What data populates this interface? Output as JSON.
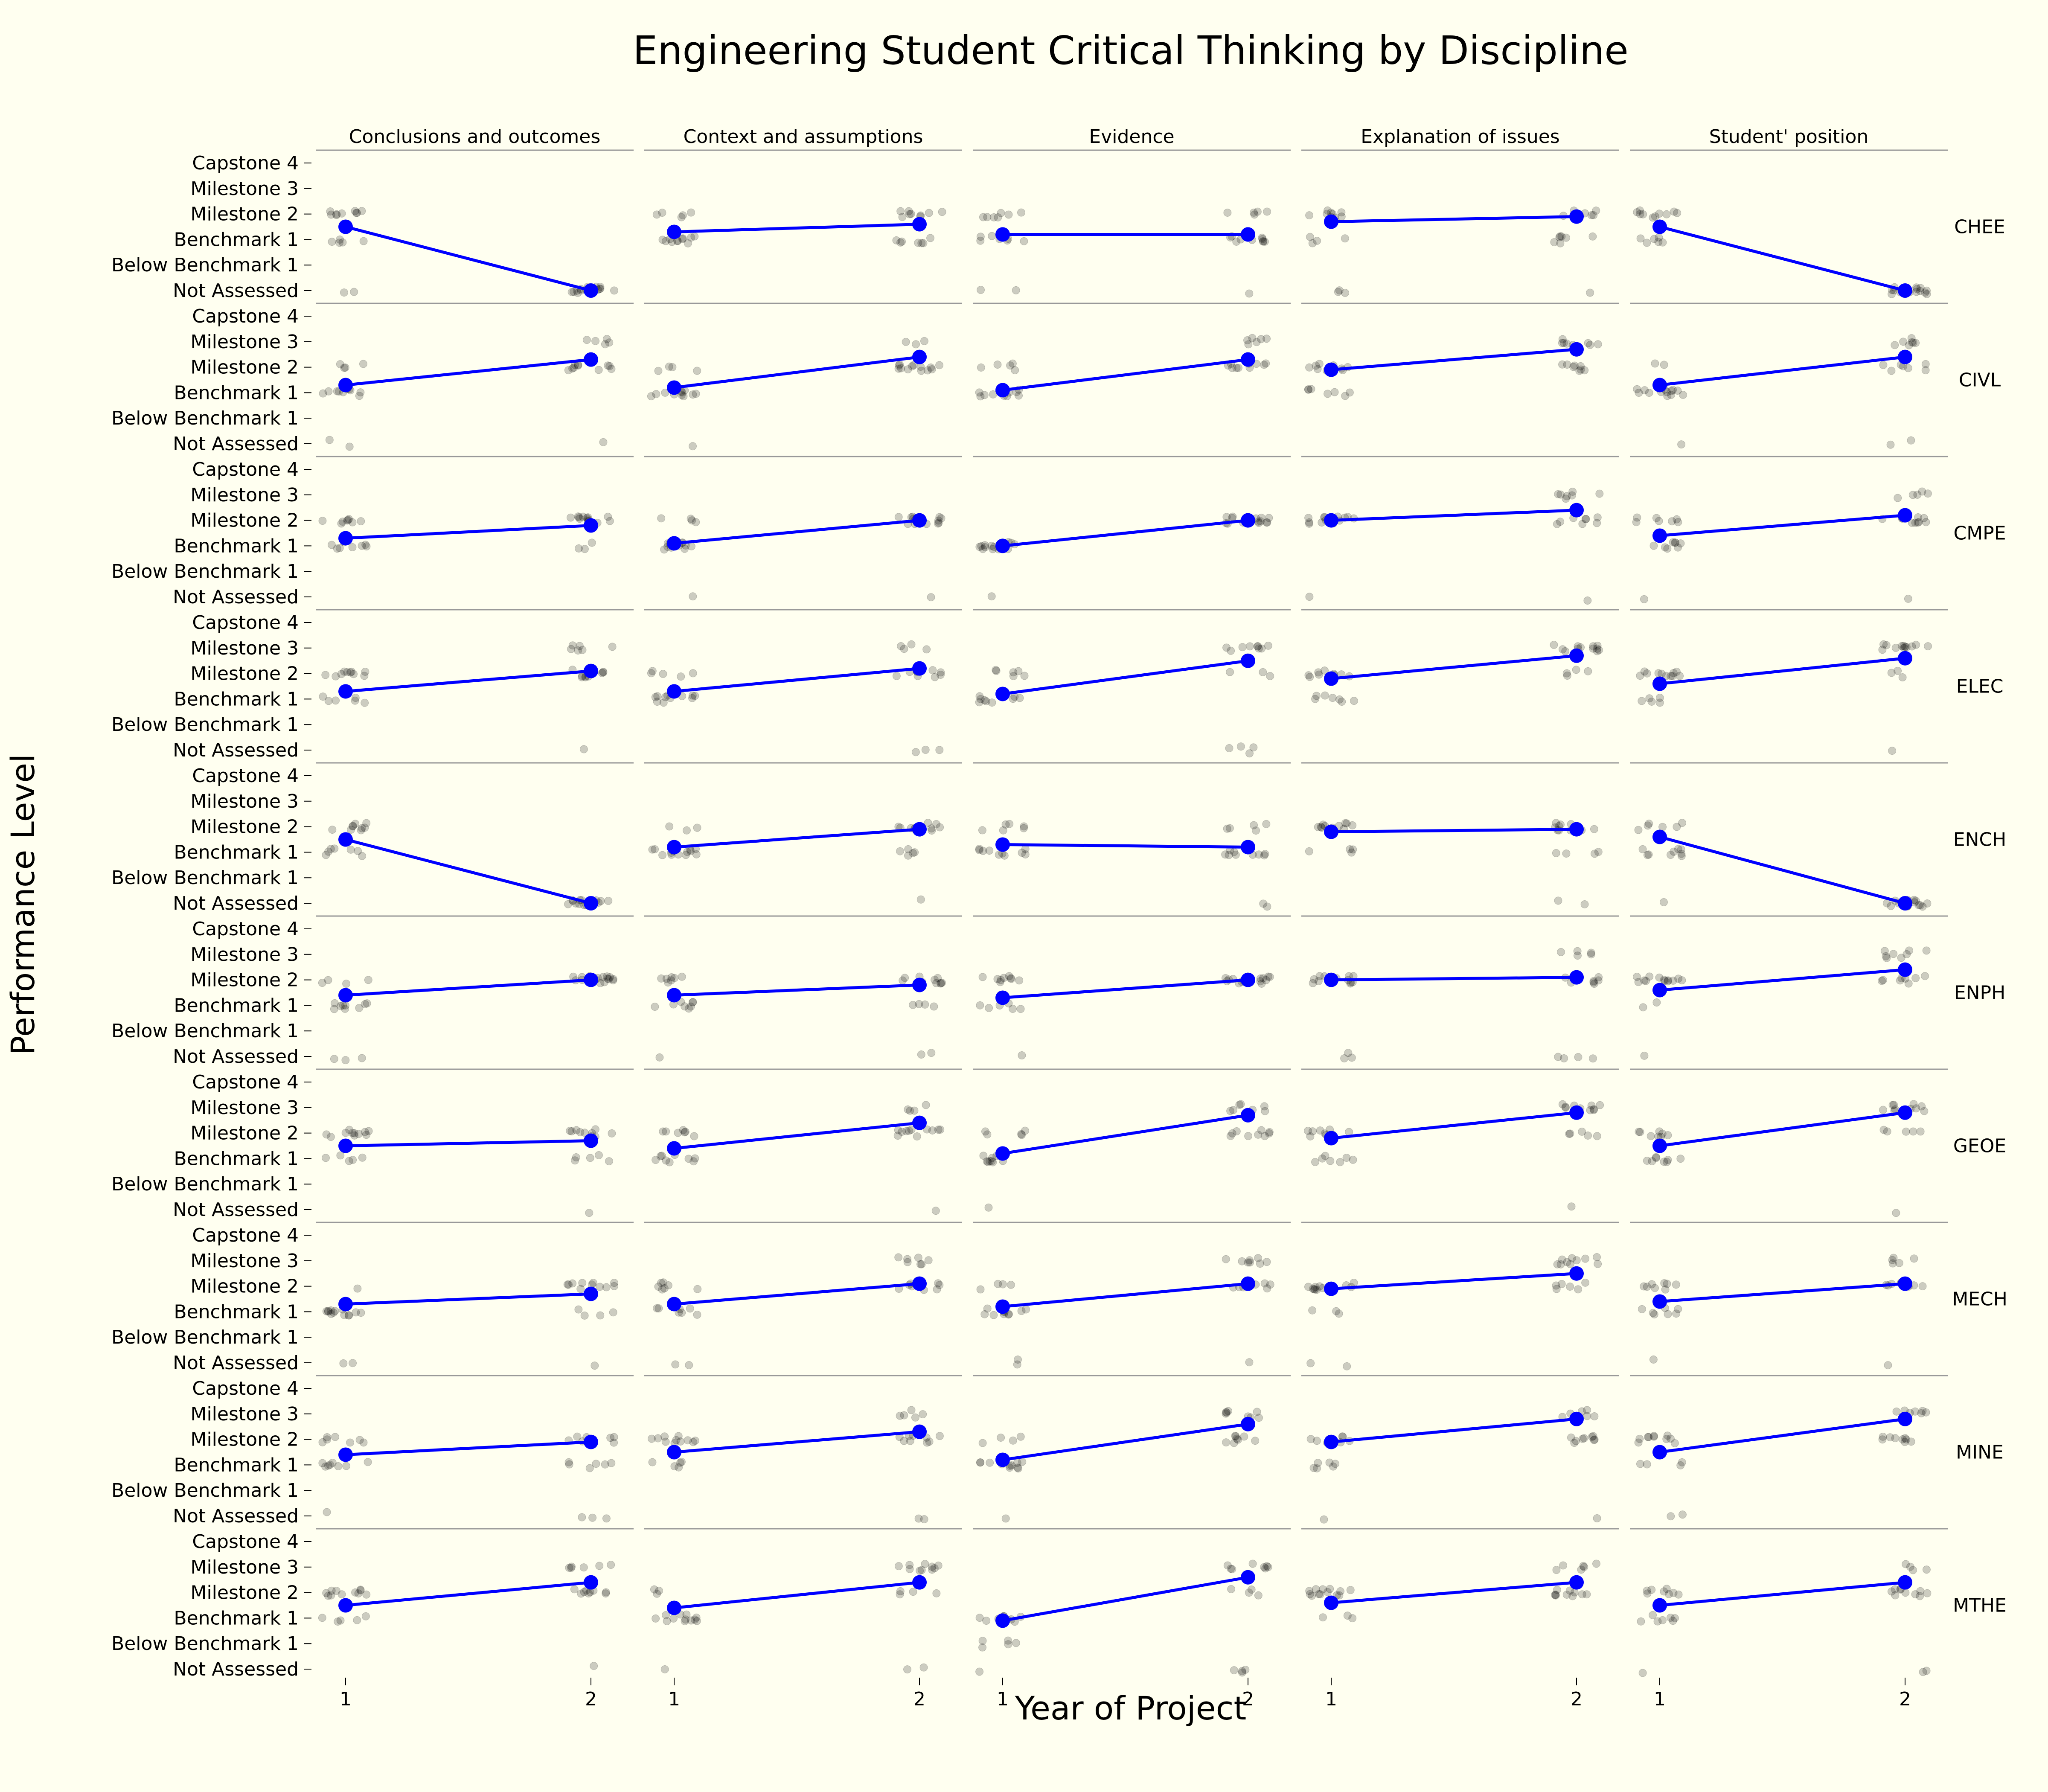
{
  "chart_data": {
    "type": "line",
    "title": "Engineering Student Critical Thinking by Discipline",
    "xlabel": "Year of Project",
    "ylabel": "Performance Level",
    "x_ticks": [
      "1",
      "2"
    ],
    "y_levels": [
      "Not Assessed",
      "Below Benchmark 1",
      "Benchmark 1",
      "Milestone 2",
      "Milestone 3",
      "Capstone 4"
    ],
    "ylim": [
      0,
      5
    ],
    "columns": [
      "Conclusions and outcomes",
      "Context and assumptions",
      "Evidence",
      "Explanation of issues",
      "Student' position"
    ],
    "rows": [
      "CHEE",
      "CIVL",
      "CMPE",
      "ELEC",
      "ENCH",
      "ENPH",
      "GEOE",
      "MECH",
      "MINE",
      "MTHE"
    ],
    "mean_line_color": "#0000FF",
    "point_color": "#000000",
    "panels": [
      {
        "row": "CHEE",
        "means": [
          [
            2.5,
            0.0
          ],
          [
            2.3,
            2.6
          ],
          [
            2.2,
            2.2
          ],
          [
            2.7,
            2.9
          ],
          [
            2.5,
            0.0
          ]
        ]
      },
      {
        "row": "CIVL",
        "means": [
          [
            2.3,
            3.3
          ],
          [
            2.2,
            3.4
          ],
          [
            2.1,
            3.3
          ],
          [
            2.9,
            3.7
          ],
          [
            2.3,
            3.4
          ]
        ]
      },
      {
        "row": "CMPE",
        "means": [
          [
            2.3,
            2.8
          ],
          [
            2.1,
            3.0
          ],
          [
            2.0,
            3.0
          ],
          [
            3.0,
            3.4
          ],
          [
            2.4,
            3.2
          ]
        ]
      },
      {
        "row": "ELEC",
        "means": [
          [
            2.3,
            3.1
          ],
          [
            2.3,
            3.2
          ],
          [
            2.2,
            3.5
          ],
          [
            2.8,
            3.7
          ],
          [
            2.6,
            3.6
          ]
        ]
      },
      {
        "row": "ENCH",
        "means": [
          [
            2.5,
            0.0
          ],
          [
            2.2,
            2.9
          ],
          [
            2.3,
            2.2
          ],
          [
            2.8,
            2.9
          ],
          [
            2.6,
            0.0
          ]
        ]
      },
      {
        "row": "ENPH",
        "means": [
          [
            2.4,
            3.0
          ],
          [
            2.4,
            2.8
          ],
          [
            2.3,
            3.0
          ],
          [
            3.0,
            3.1
          ],
          [
            2.6,
            3.4
          ]
        ]
      },
      {
        "row": "GEOE",
        "means": [
          [
            2.5,
            2.7
          ],
          [
            2.4,
            3.4
          ],
          [
            2.2,
            3.7
          ],
          [
            2.8,
            3.8
          ],
          [
            2.5,
            3.8
          ]
        ]
      },
      {
        "row": "MECH",
        "means": [
          [
            2.3,
            2.7
          ],
          [
            2.3,
            3.1
          ],
          [
            2.2,
            3.1
          ],
          [
            2.9,
            3.5
          ],
          [
            2.4,
            3.1
          ]
        ]
      },
      {
        "row": "MINE",
        "means": [
          [
            2.4,
            2.9
          ],
          [
            2.5,
            3.3
          ],
          [
            2.2,
            3.6
          ],
          [
            2.9,
            3.8
          ],
          [
            2.5,
            3.8
          ]
        ]
      },
      {
        "row": "MTHE",
        "means": [
          [
            2.5,
            3.4
          ],
          [
            2.4,
            3.4
          ],
          [
            1.9,
            3.6
          ],
          [
            2.6,
            3.4
          ],
          [
            2.5,
            3.4
          ]
        ]
      }
    ]
  }
}
